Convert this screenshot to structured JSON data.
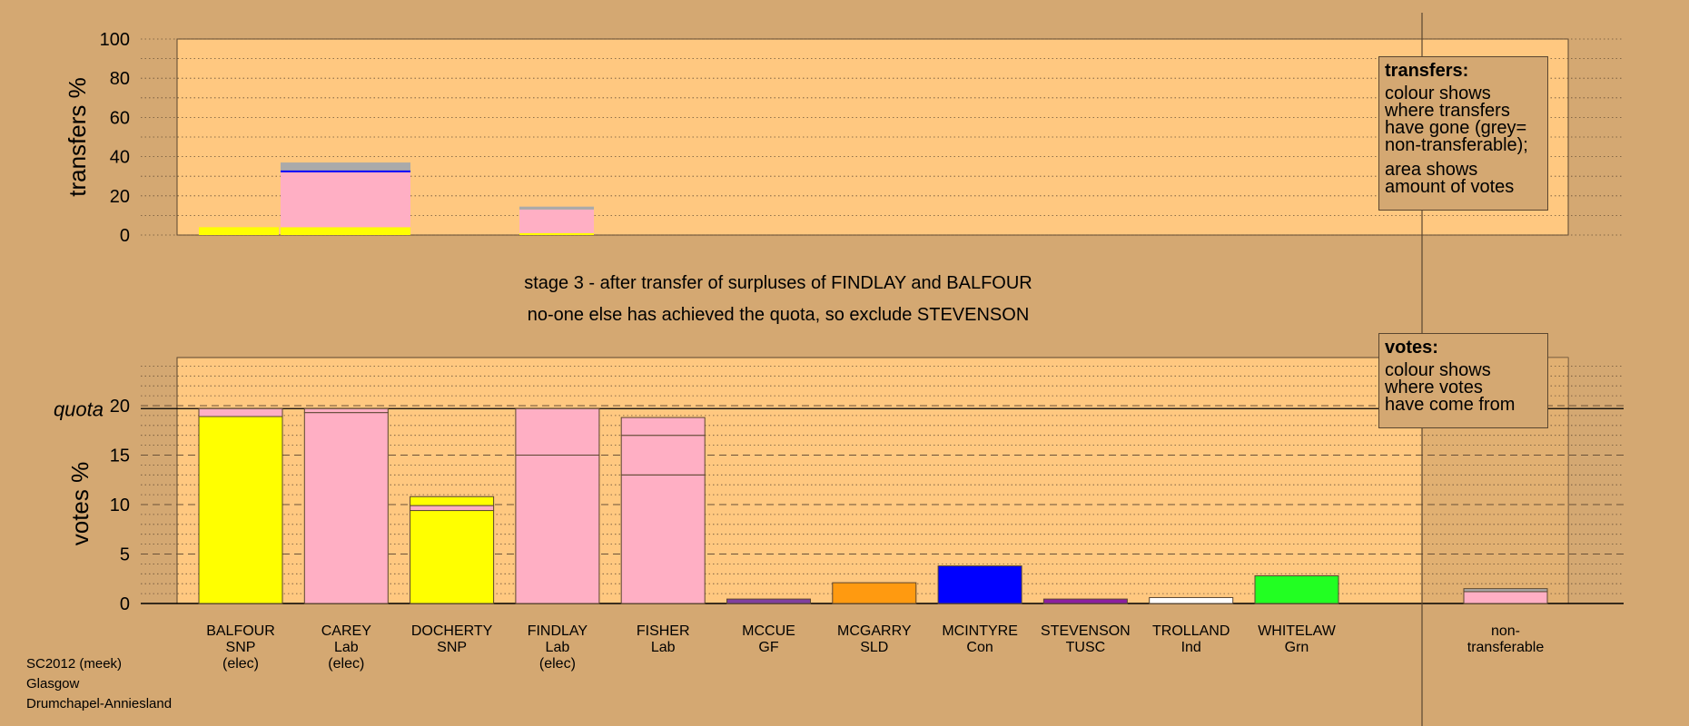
{
  "stage_text": "stage 3 - after transfer of surpluses of FINDLAY and BALFOUR",
  "status_text": "no-one else has achieved the quota, so exclude STEVENSON",
  "footer": [
    "SC2012 (meek)",
    "Glasgow",
    "Drumchapel-Anniesland"
  ],
  "legend_transfers": {
    "title": "transfers:",
    "lines1": [
      "colour shows",
      "where transfers",
      "have gone (grey=",
      "non-transferable);"
    ],
    "lines2": [
      "area shows",
      "amount of votes"
    ]
  },
  "legend_votes": {
    "title": "votes:",
    "lines": [
      "colour shows",
      "where votes",
      "have come from"
    ]
  },
  "colors": {
    "background": "#d4a872",
    "plot_bg": "#ffc880",
    "SNP": "#ffff00",
    "Lab": "#ffafc4",
    "GF": "#7f3f9f",
    "SLD": "#ff9a10",
    "Con": "#0000ff",
    "TUSC": "#8b1fa0",
    "Ind": "#ffffff",
    "Grn": "#22ff22",
    "nontransferable": "#aaaaaa"
  },
  "chart_data": [
    {
      "type": "bar",
      "ylabel": "transfers %",
      "ylim": [
        0,
        100
      ],
      "yticks": [
        0,
        20,
        40,
        60,
        80,
        100
      ],
      "transfers": [
        {
          "from": "BALFOUR",
          "segments": [
            {
              "party": "SNP",
              "value": 4
            }
          ]
        },
        {
          "from": "BALFOUR",
          "segments": [
            {
              "party": "SNP",
              "value": 4
            },
            {
              "party": "Lab",
              "value": 28
            },
            {
              "party": "Con",
              "value": 1
            },
            {
              "party": "nontransferable",
              "value": 4
            }
          ]
        },
        {
          "from": "FINDLAY",
          "segments": [
            {
              "party": "SNP",
              "value": 1
            },
            {
              "party": "Lab",
              "value": 12
            },
            {
              "party": "nontransferable",
              "value": 1.5
            }
          ]
        }
      ]
    },
    {
      "type": "bar",
      "ylabel": "votes %",
      "quota_label": "quota",
      "quota": 19.7,
      "ylim": [
        0,
        20
      ],
      "yticks": [
        0,
        5,
        10,
        15,
        20
      ],
      "candidates": [
        {
          "name": "BALFOUR",
          "party": "SNP",
          "status": "(elec)",
          "segments": [
            {
              "party": "SNP",
              "value": 18.9
            },
            {
              "party": "Lab",
              "value": 0.8
            }
          ]
        },
        {
          "name": "CAREY",
          "party": "Lab",
          "status": "(elec)",
          "segments": [
            {
              "party": "Lab",
              "value": 19.3
            },
            {
              "party": "Lab",
              "value": 0.4
            }
          ]
        },
        {
          "name": "DOCHERTY",
          "party": "SNP",
          "status": "",
          "segments": [
            {
              "party": "SNP",
              "value": 9.4
            },
            {
              "party": "Lab",
              "value": 0.5
            },
            {
              "party": "SNP",
              "value": 0.9
            }
          ]
        },
        {
          "name": "FINDLAY",
          "party": "Lab",
          "status": "(elec)",
          "segments": [
            {
              "party": "Lab",
              "value": 15.0
            },
            {
              "party": "Lab",
              "value": 4.7
            }
          ]
        },
        {
          "name": "FISHER",
          "party": "Lab",
          "status": "",
          "segments": [
            {
              "party": "Lab",
              "value": 13.0
            },
            {
              "party": "Lab",
              "value": 4.0
            },
            {
              "party": "Lab",
              "value": 1.8
            }
          ]
        },
        {
          "name": "MCCUE",
          "party": "GF",
          "status": "",
          "segments": [
            {
              "party": "GF",
              "value": 0.45
            }
          ]
        },
        {
          "name": "MCGARRY",
          "party": "SLD",
          "status": "",
          "segments": [
            {
              "party": "SLD",
              "value": 2.1
            }
          ]
        },
        {
          "name": "MCINTYRE",
          "party": "Con",
          "status": "",
          "segments": [
            {
              "party": "Con",
              "value": 3.8
            }
          ]
        },
        {
          "name": "STEVENSON",
          "party": "TUSC",
          "status": "",
          "segments": [
            {
              "party": "TUSC",
              "value": 0.45
            }
          ]
        },
        {
          "name": "TROLLAND",
          "party": "Ind",
          "status": "",
          "segments": [
            {
              "party": "Ind",
              "value": 0.6
            }
          ]
        },
        {
          "name": "WHITELAW",
          "party": "Grn",
          "status": "",
          "segments": [
            {
              "party": "Grn",
              "value": 2.8
            }
          ]
        }
      ],
      "nontransferable": {
        "label": [
          "non-",
          "transferable"
        ],
        "segments": [
          {
            "party": "Lab",
            "value": 1.2
          },
          {
            "party": "nontransferable",
            "value": 0.3
          }
        ]
      }
    }
  ]
}
